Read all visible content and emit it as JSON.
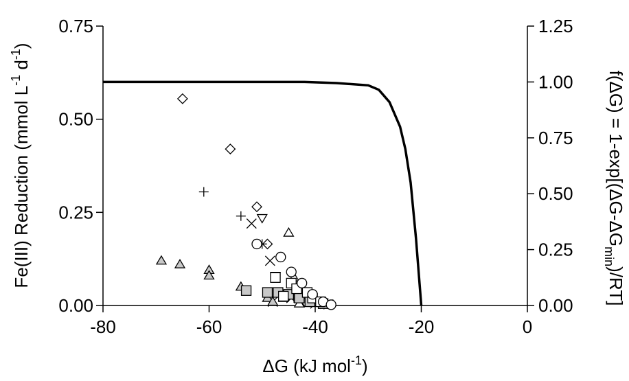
{
  "chart_data": {
    "type": "scatter",
    "x_axis": {
      "label_main": "ΔG (kJ mol",
      "label_sup": "-1",
      "label_end": ")",
      "range": [
        -80,
        0
      ],
      "ticks": [
        "-80",
        "-60",
        "-40",
        "-20",
        "0"
      ]
    },
    "y_left_axis": {
      "label_main": "Fe(III) Reduction (mmol L",
      "label_sup1": "-1",
      "label_mid": " d",
      "label_sup2": "-1",
      "label_end": ")",
      "range": [
        0,
        0.75
      ],
      "ticks": [
        "0.00",
        "0.25",
        "0.50",
        "0.75"
      ]
    },
    "y_right_axis": {
      "label_main": "f(ΔG) = 1-exp[(ΔG-ΔG",
      "label_sub": "min",
      "label_end": ")/RT]",
      "range": [
        0,
        1.25
      ],
      "ticks": [
        "0.00",
        "0.25",
        "0.50",
        "0.75",
        "1.00",
        "1.25"
      ]
    },
    "curve": {
      "axis": "right",
      "color": "#000000",
      "points": [
        [
          -80,
          1.0
        ],
        [
          -42,
          1.0
        ],
        [
          -36,
          0.995
        ],
        [
          -30,
          0.985
        ],
        [
          -28,
          0.965
        ],
        [
          -26,
          0.91
        ],
        [
          -24,
          0.8
        ],
        [
          -23,
          0.7
        ],
        [
          -22,
          0.55
        ],
        [
          -21,
          0.3
        ],
        [
          -20,
          0.0
        ]
      ]
    },
    "series": [
      {
        "marker": "diamond-open",
        "points": [
          [
            -65,
            0.555
          ],
          [
            -56,
            0.42
          ],
          [
            -51,
            0.265
          ],
          [
            -49,
            0.165
          ],
          [
            -42.5,
            0.035
          ],
          [
            -41,
            0.01
          ],
          [
            -39,
            0.005
          ]
        ]
      },
      {
        "marker": "plus",
        "points": [
          [
            -61,
            0.305
          ],
          [
            -54,
            0.24
          ],
          [
            -50,
            0.165
          ],
          [
            -47,
            0.035
          ],
          [
            -44,
            0.02
          ],
          [
            -41.5,
            0.01
          ],
          [
            -38.5,
            0.005
          ]
        ]
      },
      {
        "marker": "x",
        "points": [
          [
            -52,
            0.22
          ],
          [
            -48.5,
            0.12
          ],
          [
            -48,
            0.01
          ],
          [
            -44.5,
            0.02
          ],
          [
            -40,
            0.005
          ],
          [
            -37.5,
            0.003
          ]
        ]
      },
      {
        "marker": "triangle-down-open",
        "points": [
          [
            -50,
            0.235
          ],
          [
            -47.5,
            0.08
          ],
          [
            -45,
            0.03
          ],
          [
            -42,
            0.01
          ]
        ]
      },
      {
        "marker": "triangle-up-open",
        "points": [
          [
            -45,
            0.195
          ],
          [
            -44,
            0.075
          ],
          [
            -46,
            0.02
          ],
          [
            -43,
            0.005
          ]
        ]
      },
      {
        "marker": "triangle-up-filled",
        "points": [
          [
            -69,
            0.12
          ],
          [
            -65.5,
            0.11
          ],
          [
            -60,
            0.095
          ],
          [
            -60,
            0.08
          ],
          [
            -54,
            0.05
          ],
          [
            -49,
            0.02
          ],
          [
            -48,
            0.01
          ]
        ]
      },
      {
        "marker": "square-filled",
        "points": [
          [
            -53,
            0.04
          ],
          [
            -49,
            0.035
          ],
          [
            -47,
            0.035
          ],
          [
            -45,
            0.03
          ],
          [
            -43,
            0.02
          ],
          [
            -41,
            0.01
          ],
          [
            -38.5,
            0.005
          ]
        ]
      },
      {
        "marker": "square-open",
        "points": [
          [
            -47.5,
            0.075
          ],
          [
            -44.5,
            0.06
          ],
          [
            -43.5,
            0.045
          ],
          [
            -41.5,
            0.035
          ],
          [
            -40.5,
            0.02
          ],
          [
            -39,
            0.01
          ],
          [
            -46,
            0.025
          ]
        ]
      },
      {
        "marker": "circle-open",
        "points": [
          [
            -51,
            0.165
          ],
          [
            -46.5,
            0.13
          ],
          [
            -44.5,
            0.09
          ],
          [
            -42.5,
            0.06
          ],
          [
            -40.5,
            0.03
          ],
          [
            -38.5,
            0.01
          ],
          [
            -37,
            0.002
          ]
        ]
      }
    ],
    "marker_fill": "#c8c8c8"
  }
}
